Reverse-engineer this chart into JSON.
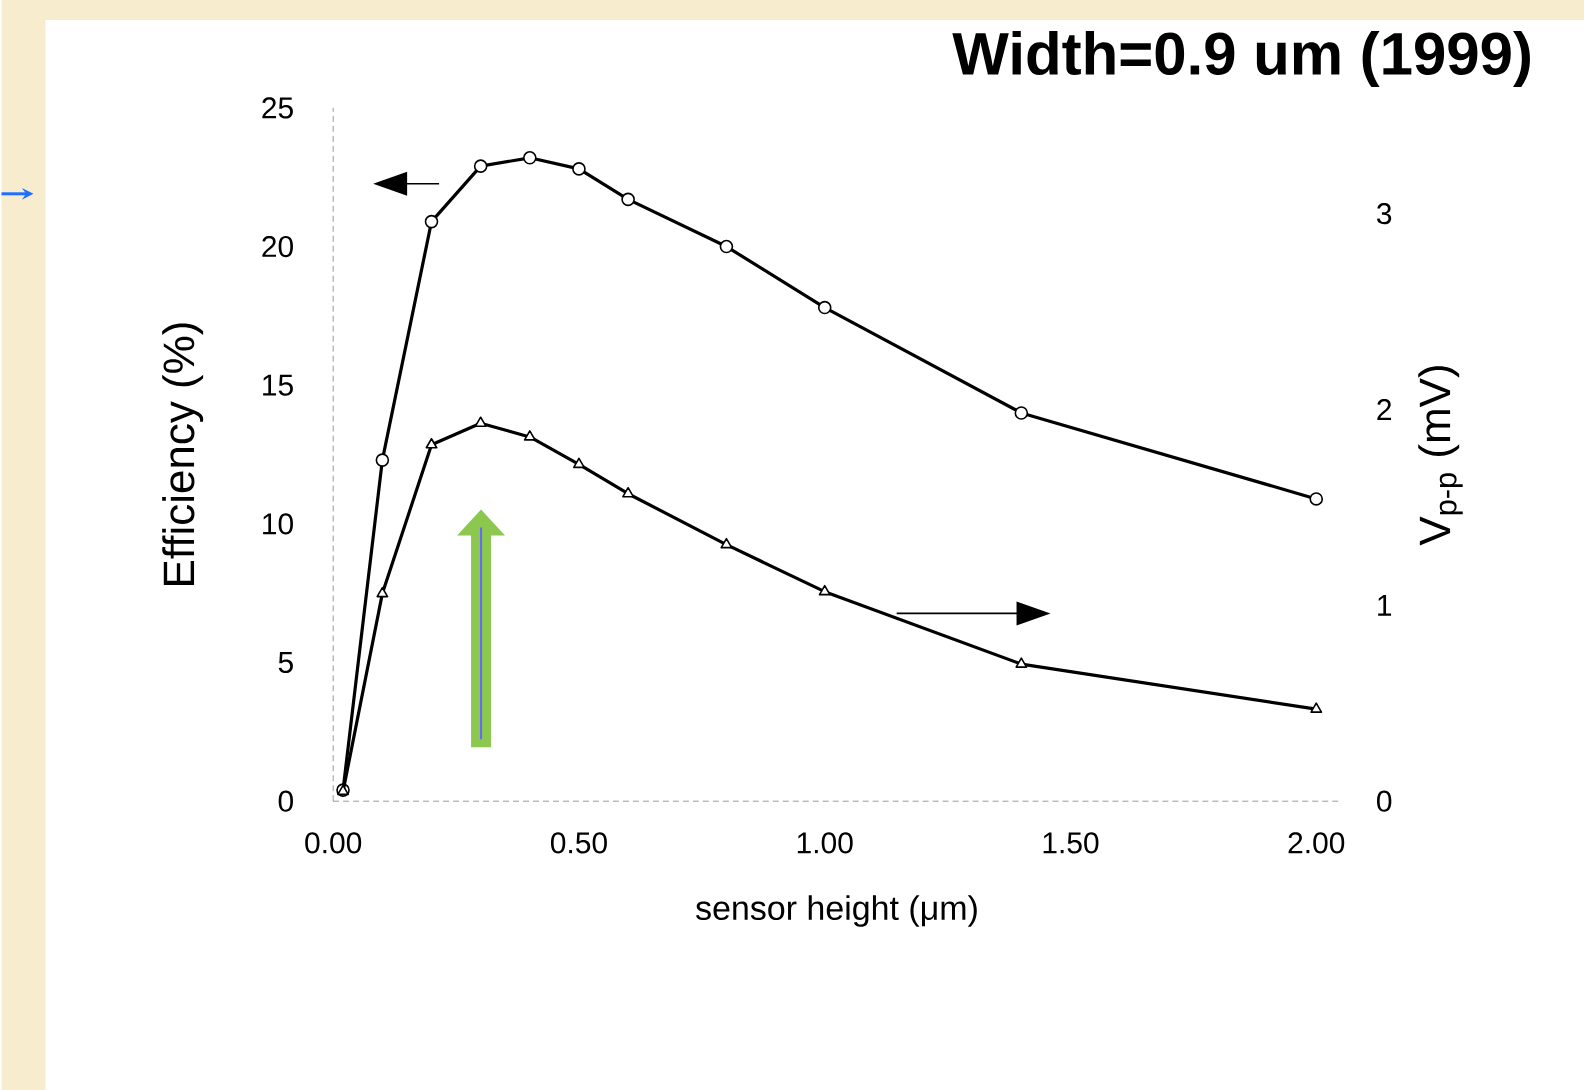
{
  "chart_data": {
    "type": "line",
    "title": "Width=0.9 um (1999)",
    "xlabel": "sensor height (μm)",
    "ylabel": "Efficiency (%)",
    "y2label": "V$_{p-p}$ (mV)",
    "x": [
      0.02,
      0.1,
      0.2,
      0.3,
      0.4,
      0.5,
      0.6,
      0.8,
      1.0,
      1.4,
      2.0
    ],
    "xlim": [
      0,
      2.05
    ],
    "xticks": [
      {
        "value": 0,
        "label": "0.00"
      },
      {
        "value": 0.5,
        "label": "0.50"
      },
      {
        "value": 1,
        "label": "1.00"
      },
      {
        "value": 1.5,
        "label": "1.50"
      },
      {
        "value": 2,
        "label": "2.00"
      }
    ],
    "ylim": [
      0,
      25
    ],
    "yticks": [
      0,
      5,
      10,
      15,
      20,
      25
    ],
    "y2lim": [
      0,
      3.54
    ],
    "y2ticks": [
      0,
      1,
      2,
      3
    ],
    "series": [
      {
        "color": "#000000",
        "marker": "circle",
        "values": [
          0.4,
          12.3,
          20.9,
          22.9,
          23.2,
          22.8,
          21.7,
          20.0,
          17.8,
          14.0,
          10.9
        ]
      },
      {
        "color": "#000000",
        "marker": "triangle",
        "axis": "y2",
        "values": [
          0.05,
          1.06,
          1.82,
          1.93,
          1.86,
          1.72,
          1.57,
          1.31,
          1.07,
          0.7,
          0.47
        ]
      }
    ]
  }
}
